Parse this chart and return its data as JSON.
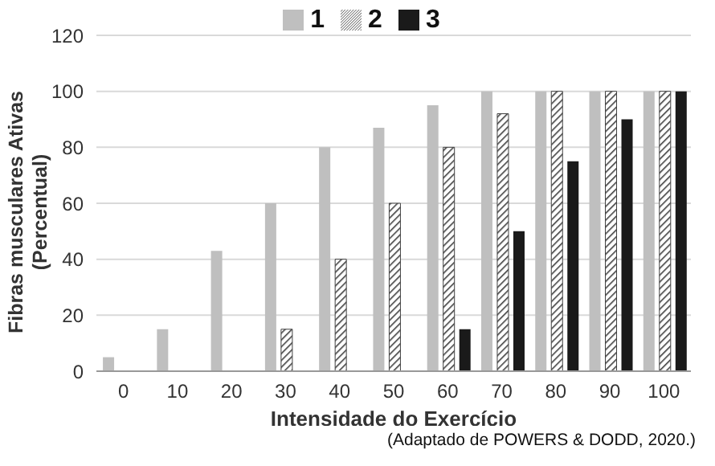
{
  "chart_data": {
    "type": "bar",
    "xlabel": "Intensidade do Exercício",
    "ylabel": "Fibras musculares Ativas (Percentual)",
    "categories": [
      "0",
      "10",
      "20",
      "30",
      "40",
      "50",
      "60",
      "70",
      "80",
      "90",
      "100"
    ],
    "series": [
      {
        "name": "1",
        "color": "#bfbfbf",
        "values": [
          5,
          15,
          43,
          60,
          80,
          87,
          95,
          100,
          100,
          100,
          100
        ]
      },
      {
        "name": "2",
        "color": "#404040",
        "values": [
          null,
          null,
          null,
          15,
          40,
          60,
          80,
          92,
          100,
          100,
          100
        ]
      },
      {
        "name": "3",
        "color": "#1a1a1a",
        "values": [
          null,
          null,
          null,
          null,
          null,
          null,
          15,
          50,
          75,
          90,
          100
        ]
      }
    ],
    "ylim": [
      0,
      120
    ],
    "yticks": [
      0,
      20,
      40,
      60,
      80,
      100,
      120
    ],
    "grid": "y",
    "legend": "top",
    "annotations": [
      "(Adaptado de POWERS & DODD, 2020.)"
    ]
  }
}
